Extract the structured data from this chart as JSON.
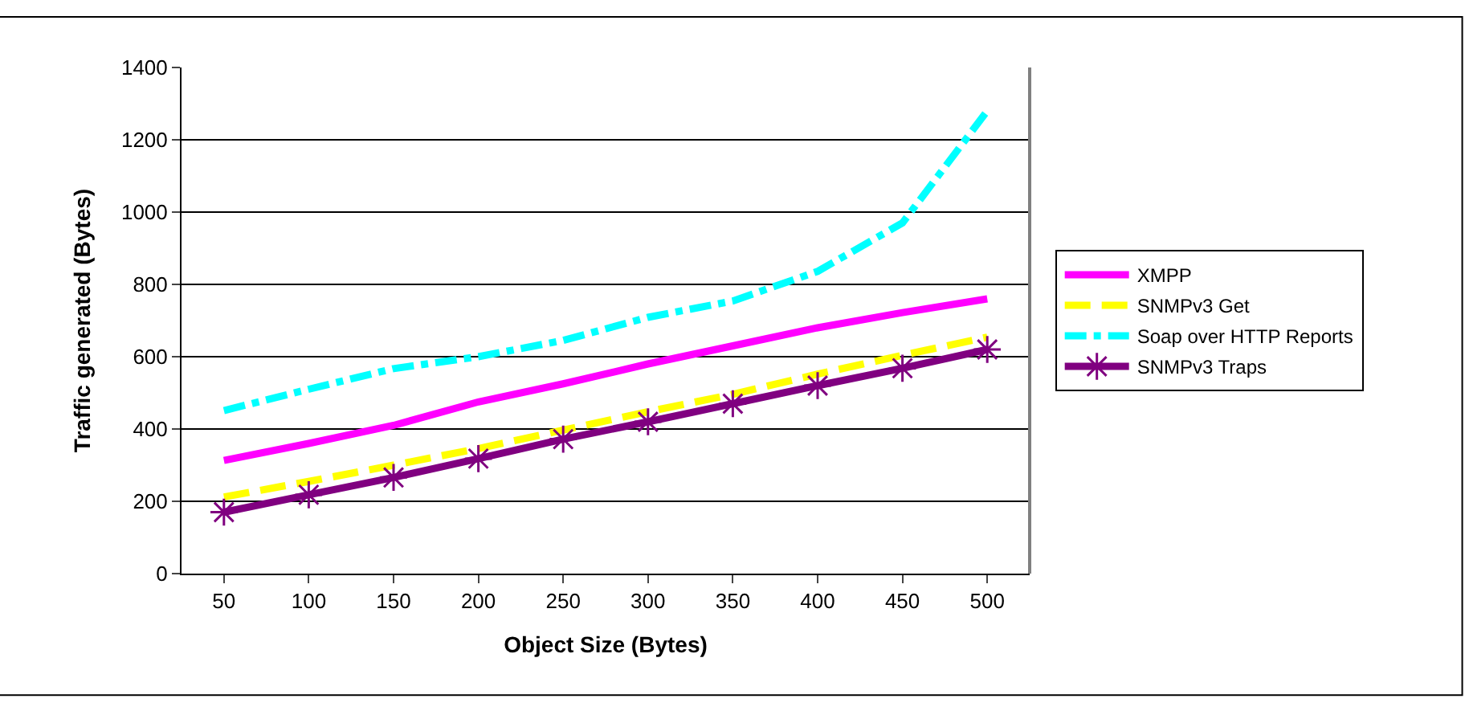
{
  "chart_data": {
    "type": "line",
    "xlabel": "Object Size (Bytes)",
    "ylabel": "Traffic generated (Bytes)",
    "categories": [
      "50",
      "100",
      "150",
      "200",
      "250",
      "300",
      "350",
      "400",
      "450",
      "500"
    ],
    "series": [
      {
        "name": "XMPP",
        "color": "#ff00ff",
        "line_style": "solid",
        "marker": "none",
        "values": [
          313,
          360,
          410,
          475,
          525,
          580,
          630,
          680,
          722,
          760
        ]
      },
      {
        "name": "SNMPv3 Get",
        "color": "#ffff00",
        "line_style": "dashed",
        "marker": "none",
        "values": [
          212,
          255,
          300,
          346,
          397,
          448,
          496,
          552,
          604,
          654
        ]
      },
      {
        "name": "Soap over HTTP Reports",
        "color": "#00ffff",
        "line_style": "dashdot",
        "marker": "none",
        "values": [
          451,
          510,
          567,
          600,
          645,
          709,
          754,
          836,
          970,
          1280
        ]
      },
      {
        "name": "SNMPv3 Traps",
        "color": "#800080",
        "line_style": "solid",
        "marker": "cross",
        "values": [
          170,
          218,
          266,
          318,
          372,
          420,
          470,
          520,
          568,
          620
        ]
      }
    ],
    "ylim": [
      0,
      1400
    ],
    "yticks": [
      0,
      200,
      400,
      600,
      800,
      1000,
      1200,
      1400
    ],
    "grid": "y",
    "legend": "right"
  }
}
